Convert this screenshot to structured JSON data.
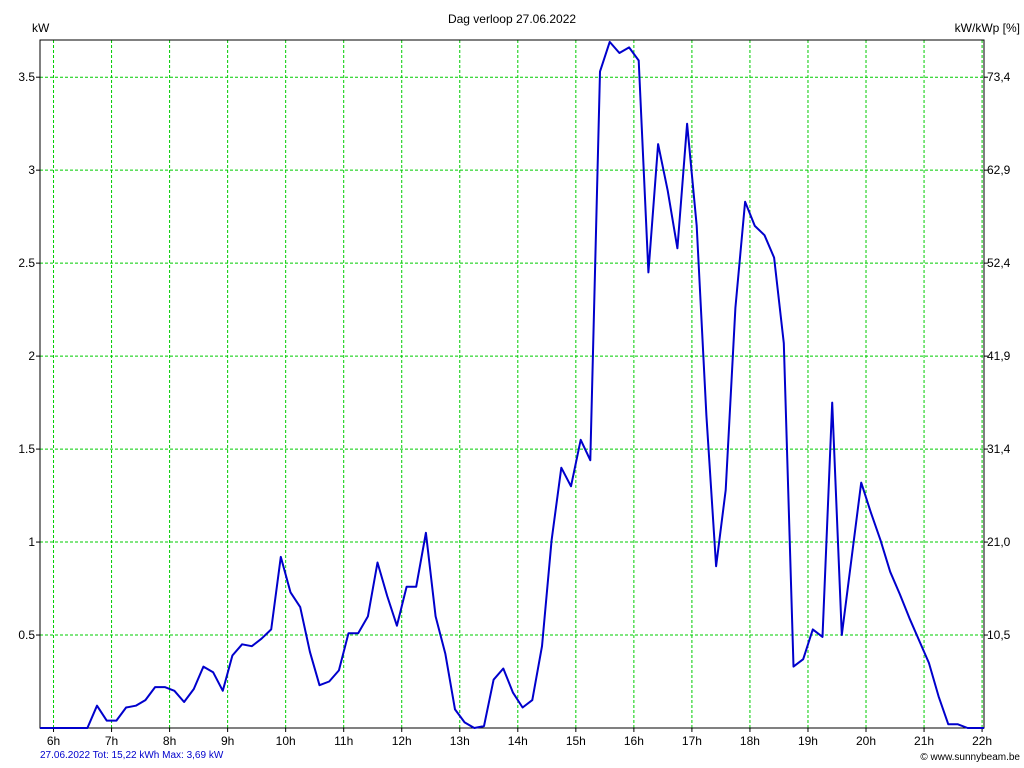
{
  "chart_data": {
    "type": "line",
    "title": "Dag  verloop 27.06.2022",
    "ylabel_left": "kW",
    "ylabel_right": "kW/kWp [%]",
    "ylim": [
      0,
      3.7
    ],
    "xlim": [
      5.767,
      22.033
    ],
    "grid": true,
    "x_ticks": [
      "6h",
      "7h",
      "8h",
      "9h",
      "10h",
      "11h",
      "12h",
      "13h",
      "14h",
      "15h",
      "16h",
      "17h",
      "18h",
      "19h",
      "20h",
      "21h",
      "22h"
    ],
    "y_ticks_left": [
      "0.5",
      "1",
      "1.5",
      "2",
      "2.5",
      "3",
      "3.5"
    ],
    "y_ticks_right": [
      "10,5",
      "21,0",
      "31,4",
      "41,9",
      "52,4",
      "62,9",
      "73,4"
    ],
    "line_color": "#0000cc",
    "grid_color": "#00cc00",
    "series": [
      {
        "x": [
          5.767,
          6.583,
          6.75,
          6.917,
          7.083,
          7.25,
          7.417,
          7.583,
          7.75,
          7.917,
          8.083,
          8.25,
          8.417,
          8.583,
          8.75,
          8.917,
          9.083,
          9.25,
          9.417,
          9.583,
          9.75,
          9.917,
          10.083,
          10.25,
          10.417,
          10.583,
          10.75,
          10.917,
          11.083,
          11.25,
          11.417,
          11.583,
          11.75,
          11.917,
          12.083,
          12.25,
          12.417,
          12.583,
          12.75,
          12.917,
          13.083,
          13.25,
          13.417,
          13.583,
          13.75,
          13.917,
          14.083,
          14.25,
          14.417,
          14.583,
          14.75,
          14.917,
          15.083,
          15.25,
          15.417,
          15.583,
          15.75,
          15.917,
          16.083,
          16.25,
          16.417,
          16.583,
          16.75,
          16.917,
          17.083,
          17.25,
          17.417,
          17.583,
          17.75,
          17.917,
          18.083,
          18.25,
          18.417,
          18.583,
          18.75,
          18.917,
          19.083,
          19.25,
          19.417,
          19.583,
          19.75,
          19.917,
          20.083,
          20.25,
          20.417,
          20.583,
          20.75,
          20.917,
          21.083,
          21.25,
          21.417,
          21.583,
          21.75,
          21.917,
          22.033
        ],
        "values": [
          0,
          0,
          0.12,
          0.04,
          0.04,
          0.11,
          0.12,
          0.15,
          0.22,
          0.22,
          0.2,
          0.14,
          0.21,
          0.33,
          0.3,
          0.2,
          0.39,
          0.45,
          0.44,
          0.48,
          0.53,
          0.92,
          0.73,
          0.65,
          0.41,
          0.23,
          0.25,
          0.31,
          0.51,
          0.51,
          0.6,
          0.89,
          0.71,
          0.55,
          0.76,
          0.76,
          1.05,
          0.6,
          0.4,
          0.1,
          0.03,
          0,
          0.01,
          0.26,
          0.32,
          0.19,
          0.11,
          0.15,
          0.44,
          1.01,
          1.4,
          1.3,
          1.55,
          1.44,
          3.53,
          3.69,
          3.63,
          3.66,
          3.59,
          2.45,
          3.14,
          2.89,
          2.58,
          3.25,
          2.7,
          1.68,
          0.87,
          1.28,
          2.26,
          2.83,
          2.7,
          2.65,
          2.53,
          2.07,
          0.33,
          0.37,
          0.53,
          0.49,
          1.75,
          0.5,
          0.91,
          1.32,
          1.16,
          1.01,
          0.84,
          0.72,
          0.59,
          0.47,
          0.35,
          0.17,
          0.02,
          0.02,
          0,
          0,
          0
        ]
      }
    ]
  },
  "footer": {
    "summary": "27.06.2022 Tot: 15,22 kWh Max: 3,69 kW",
    "credit": "© www.sunnybeam.be"
  }
}
